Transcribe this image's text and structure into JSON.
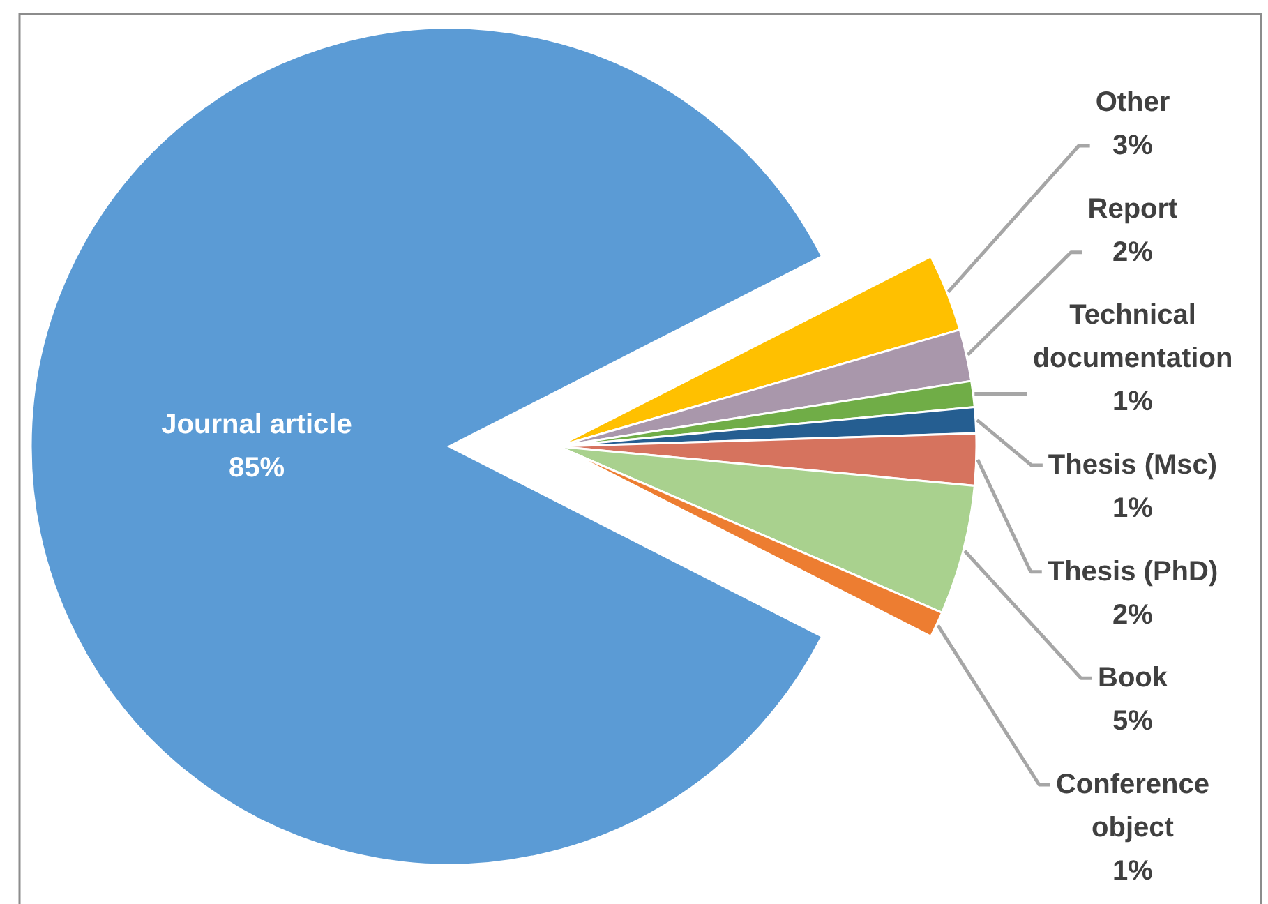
{
  "chart_data": {
    "type": "pie",
    "categories": [
      "Journal article",
      "Other",
      "Report",
      "Technical documentation",
      "Thesis (Msc)",
      "Thesis (PhD)",
      "Book",
      "Conference object"
    ],
    "values": [
      85,
      3,
      2,
      1,
      1,
      2,
      5,
      1
    ],
    "colors": [
      "#5b9bd5",
      "#ffc000",
      "#a997ab",
      "#70ad47",
      "#255e91",
      "#d6735e",
      "#a9d18e",
      "#ed7d31"
    ],
    "value_labels": [
      "85%",
      "3%",
      "2%",
      "1%",
      "1%",
      "2%",
      "5%",
      "1%"
    ]
  }
}
